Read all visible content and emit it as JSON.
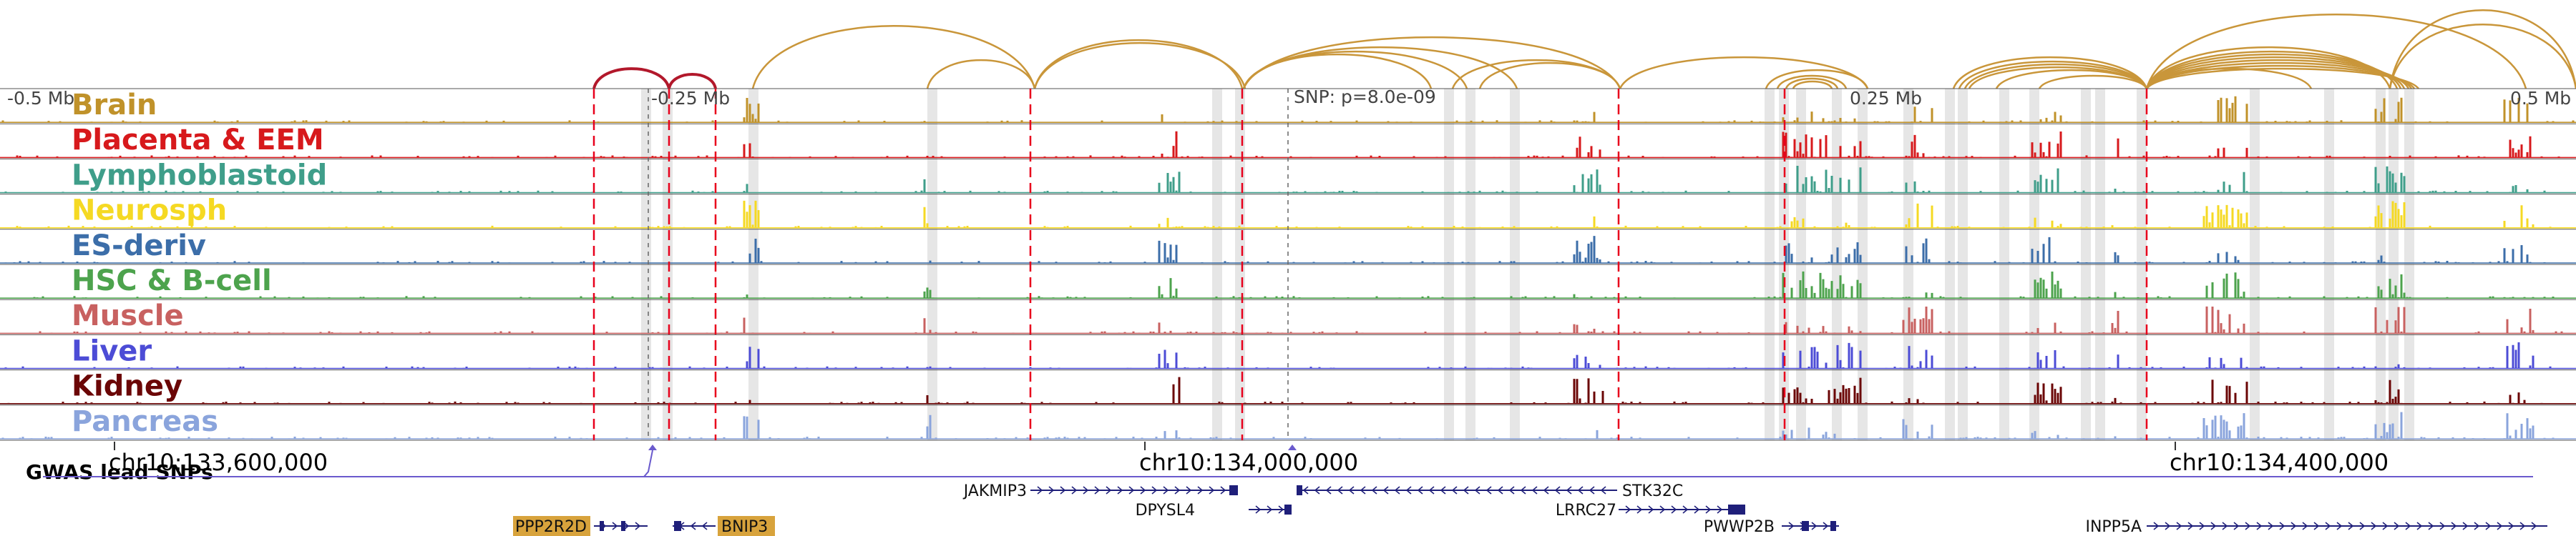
{
  "axis": {
    "ticks": [
      "-0.5 Mb",
      "-0.25 Mb",
      "0.25 Mb",
      "0.5 Mb"
    ],
    "coords": [
      "chr10:133,600,000",
      "chr10:134,000,000",
      "chr10:134,400,000"
    ]
  },
  "snp_annotation": "SNP: p=8.0e-09",
  "gwas_label": "GWAS lead SNPs",
  "tracks": [
    {
      "label": "Brain",
      "color": "#C0922A"
    },
    {
      "label": "Placenta & EEM",
      "color": "#D7191C"
    },
    {
      "label": "Lymphoblastoid",
      "color": "#3F9E8A"
    },
    {
      "label": "Neurosph",
      "color": "#F5D923"
    },
    {
      "label": "ES-deriv",
      "color": "#3C6EA9"
    },
    {
      "label": "HSC & B-cell",
      "color": "#4DA34D"
    },
    {
      "label": "Muscle",
      "color": "#C86160"
    },
    {
      "label": "Liver",
      "color": "#4C4CD6"
    },
    {
      "label": "Kidney",
      "color": "#6B0606"
    },
    {
      "label": "Pancreas",
      "color": "#8AA4DC"
    }
  ],
  "genes": [
    {
      "name": "JAKMIP3",
      "highlight": false
    },
    {
      "name": "DPYSL4",
      "highlight": false
    },
    {
      "name": "STK32C",
      "highlight": false
    },
    {
      "name": "LRRC27",
      "highlight": false
    },
    {
      "name": "PWWP2B",
      "highlight": false
    },
    {
      "name": "INPP5A",
      "highlight": false
    },
    {
      "name": "PPP2R2D",
      "highlight": true
    },
    {
      "name": "BNIP3",
      "highlight": true
    }
  ],
  "colors": {
    "loop_main": "#C9963A",
    "loop_red": "#B2182B",
    "gene_line": "#1F1F7A",
    "gwas": "#6A5ACD",
    "highlight_bg": "#D8A33C",
    "red_marker": "#E8001C",
    "grey_band": "#C8C8C8"
  }
}
